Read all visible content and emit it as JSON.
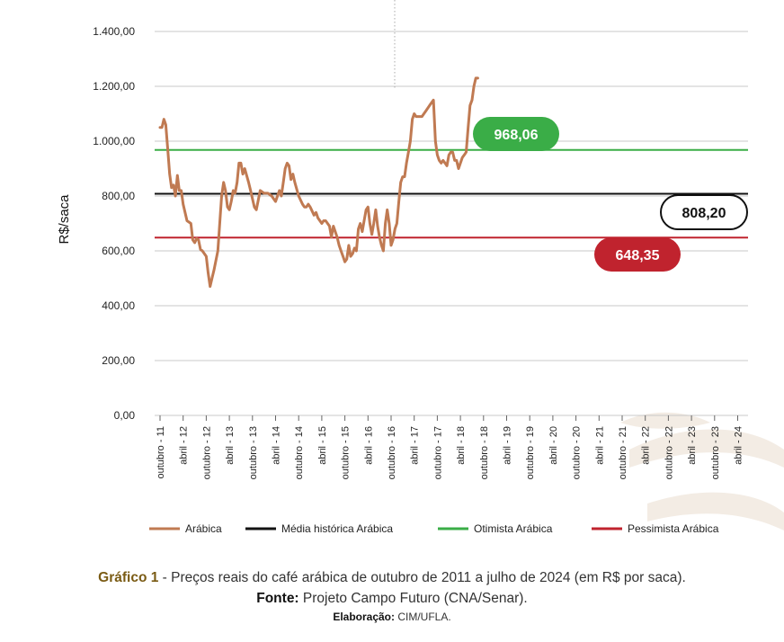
{
  "chart_data": {
    "type": "line",
    "ylabel": "R$/saca",
    "ylim": [
      0,
      1400
    ],
    "yticks": [
      "0,00",
      "200,00",
      "400,00",
      "600,00",
      "800,00",
      "1.000,00",
      "1.200,00",
      "1.400,00"
    ],
    "ytick_values": [
      0,
      200,
      400,
      600,
      800,
      1000,
      1200,
      1400
    ],
    "xticks": [
      "outubro - 11",
      "abril - 12",
      "outubro - 12",
      "abril - 13",
      "outubro - 13",
      "abril - 14",
      "outubro - 14",
      "abril - 15",
      "outubro - 15",
      "abril - 16",
      "outubro - 16",
      "abril - 17",
      "outubro - 17",
      "abril - 18",
      "outubro - 18",
      "abril - 19",
      "outubro - 19",
      "abril - 20",
      "outubro - 20",
      "abril - 21",
      "outubro - 21",
      "abril - 22",
      "outubro - 22",
      "abril - 23",
      "outubro - 23",
      "abril - 24"
    ],
    "x_unit": "months since outubro 2011",
    "series": [
      {
        "name": "Arábica",
        "color": "#c07a52",
        "points": [
          [
            0,
            1050
          ],
          [
            0.5,
            1050
          ],
          [
            1,
            1080
          ],
          [
            1.5,
            1060
          ],
          [
            2,
            970
          ],
          [
            2.5,
            880
          ],
          [
            3,
            830
          ],
          [
            3.5,
            840
          ],
          [
            4,
            800
          ],
          [
            4.5,
            875
          ],
          [
            5,
            820
          ],
          [
            5.5,
            820
          ],
          [
            6,
            770
          ],
          [
            7,
            710
          ],
          [
            8,
            700
          ],
          [
            8.5,
            640
          ],
          [
            9,
            630
          ],
          [
            9.5,
            645
          ],
          [
            10,
            640
          ],
          [
            10.5,
            605
          ],
          [
            11,
            600
          ],
          [
            12,
            580
          ],
          [
            12.5,
            520
          ],
          [
            13,
            470
          ],
          [
            13.5,
            500
          ],
          [
            14,
            530
          ],
          [
            15,
            600
          ],
          [
            15.5,
            700
          ],
          [
            16,
            800
          ],
          [
            16.5,
            850
          ],
          [
            17,
            820
          ],
          [
            17.5,
            760
          ],
          [
            18,
            750
          ],
          [
            18.5,
            780
          ],
          [
            19,
            820
          ],
          [
            19.5,
            810
          ],
          [
            20,
            850
          ],
          [
            20.5,
            920
          ],
          [
            21,
            920
          ],
          [
            21.5,
            880
          ],
          [
            22,
            900
          ],
          [
            23,
            850
          ],
          [
            23.5,
            820
          ],
          [
            24,
            790
          ],
          [
            24.5,
            760
          ],
          [
            25,
            750
          ],
          [
            26,
            820
          ],
          [
            27,
            810
          ],
          [
            27.5,
            810
          ],
          [
            28,
            810
          ],
          [
            29,
            800
          ],
          [
            30,
            780
          ],
          [
            30.5,
            800
          ],
          [
            31,
            820
          ],
          [
            31.5,
            800
          ],
          [
            32,
            850
          ],
          [
            32.5,
            900
          ],
          [
            33,
            920
          ],
          [
            33.5,
            910
          ],
          [
            34,
            860
          ],
          [
            34.5,
            880
          ],
          [
            35,
            850
          ],
          [
            36,
            800
          ],
          [
            37,
            770
          ],
          [
            37.5,
            760
          ],
          [
            38,
            760
          ],
          [
            38.5,
            770
          ],
          [
            39,
            760
          ],
          [
            40,
            730
          ],
          [
            40.5,
            740
          ],
          [
            41,
            720
          ],
          [
            42,
            700
          ],
          [
            42.5,
            710
          ],
          [
            43,
            710
          ],
          [
            44,
            690
          ],
          [
            44.5,
            650
          ],
          [
            45,
            690
          ],
          [
            46,
            650
          ],
          [
            46.5,
            620
          ],
          [
            47,
            600
          ],
          [
            47.5,
            580
          ],
          [
            48,
            560
          ],
          [
            48.5,
            570
          ],
          [
            49,
            620
          ],
          [
            49.5,
            580
          ],
          [
            50,
            590
          ],
          [
            50.5,
            610
          ],
          [
            51,
            600
          ],
          [
            51.5,
            680
          ],
          [
            52,
            700
          ],
          [
            52.5,
            670
          ],
          [
            53,
            710
          ],
          [
            53.5,
            750
          ],
          [
            54,
            760
          ],
          [
            54.5,
            700
          ],
          [
            55,
            660
          ],
          [
            55.5,
            700
          ],
          [
            56,
            750
          ],
          [
            56.5,
            690
          ],
          [
            57,
            650
          ],
          [
            57.5,
            620
          ],
          [
            58,
            600
          ],
          [
            58.5,
            700
          ],
          [
            59,
            750
          ],
          [
            59.5,
            700
          ],
          [
            60,
            620
          ],
          [
            60.5,
            640
          ],
          [
            61,
            680
          ],
          [
            61.5,
            700
          ],
          [
            62,
            780
          ],
          [
            62.5,
            850
          ],
          [
            63,
            870
          ],
          [
            63.5,
            870
          ],
          [
            64,
            920
          ],
          [
            64.5,
            960
          ],
          [
            65,
            1000
          ],
          [
            65.5,
            1080
          ],
          [
            66,
            1100
          ],
          [
            66.5,
            1090
          ],
          [
            67,
            1090
          ],
          [
            68,
            1090
          ],
          [
            69,
            1110
          ],
          [
            70,
            1130
          ],
          [
            71,
            1150
          ],
          [
            71.5,
            1000
          ],
          [
            72,
            950
          ],
          [
            72.5,
            930
          ],
          [
            73,
            920
          ],
          [
            73.5,
            930
          ],
          [
            74,
            920
          ],
          [
            74.5,
            910
          ],
          [
            75,
            950
          ],
          [
            75.5,
            960
          ],
          [
            76,
            960
          ],
          [
            76.5,
            930
          ],
          [
            77,
            930
          ],
          [
            77.5,
            900
          ],
          [
            78,
            920
          ],
          [
            78.5,
            940
          ],
          [
            79,
            950
          ],
          [
            79.5,
            960
          ],
          [
            80,
            1050
          ],
          [
            80.5,
            1130
          ],
          [
            81,
            1150
          ],
          [
            81.5,
            1200
          ],
          [
            82,
            1230
          ],
          [
            82.5,
            1230
          ]
        ]
      },
      {
        "name": "Média histórica Arábica",
        "color": "#111111",
        "value": 808.2
      },
      {
        "name": "Otimista Arábica",
        "color": "#3aad47",
        "value": 968.06
      },
      {
        "name": "Pessimista Arábica",
        "color": "#c0232e",
        "value": 648.35
      }
    ],
    "annotations": {
      "otimista": {
        "text": "968,06",
        "fill": "#3aad47",
        "text_color": "#ffffff"
      },
      "media": {
        "text": "808,20",
        "fill": "#ffffff",
        "border": "#111111",
        "text_color": "#111111"
      },
      "pessimista": {
        "text": "648,35",
        "fill": "#c0232e",
        "text_color": "#ffffff"
      }
    },
    "legend": {
      "placement": "bottom",
      "entries": [
        "Arábica",
        "Média histórica Arábica",
        "Otimista Arábica",
        "Pessimista Arábica"
      ]
    }
  },
  "caption": {
    "line1_bold": "Gráfico 1",
    "line1_rest": " - Preços reais do café arábica de outubro de 2011 a julho de 2024 (em R$ por saca).",
    "line2_bold": "Fonte:",
    "line2_rest": " Projeto Campo Futuro (CNA/Senar).",
    "line3_bold": "Elaboração:",
    "line3_rest": " CIM/UFLA."
  },
  "colors": {
    "grid": "#c8c8c8",
    "watermark": "#f3ece4"
  }
}
